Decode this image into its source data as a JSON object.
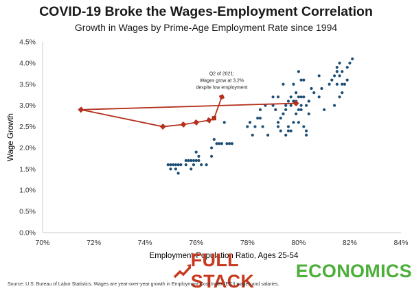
{
  "title": "COVID-19 Broke the Wages-Employment Correlation",
  "subtitle": "Growth in Wages by Prime-Age Employment Rate since 1994",
  "source": "Source: U.S. Bureau of Labor Statistics. Wages are year-over-year growth in Employment Cost Index (ECI) wages and salaries.",
  "logo": {
    "part1": "FULL STACK",
    "part2": "ECONOMICS",
    "icon": "trend-arrow-icon"
  },
  "colors": {
    "dots": "#1d4f76",
    "path": "#b5301d",
    "logo_red": "#c73a1f",
    "logo_green": "#4caf3a"
  },
  "chart_data": {
    "type": "scatter",
    "xlabel": "Employment-Population Ratio, Ages 25-54",
    "ylabel": "Wage Growth",
    "xlim": [
      70,
      84
    ],
    "ylim": [
      0,
      4.5
    ],
    "x_ticks": [
      {
        "value": 70,
        "label": "70%"
      },
      {
        "value": 72,
        "label": "72%"
      },
      {
        "value": 74,
        "label": "74%"
      },
      {
        "value": 76,
        "label": "76%"
      },
      {
        "value": 78,
        "label": "78%"
      },
      {
        "value": 80,
        "label": "80%"
      },
      {
        "value": 82,
        "label": "82%"
      },
      {
        "value": 84,
        "label": "84%"
      }
    ],
    "y_ticks": [
      {
        "value": 0,
        "label": "0.0%"
      },
      {
        "value": 0.5,
        "label": "0.5%"
      },
      {
        "value": 1,
        "label": "1.0%"
      },
      {
        "value": 1.5,
        "label": "1.5%"
      },
      {
        "value": 2,
        "label": "2.0%"
      },
      {
        "value": 2.5,
        "label": "2.5%"
      },
      {
        "value": 3,
        "label": "3.0%"
      },
      {
        "value": 3.5,
        "label": "3.5%"
      },
      {
        "value": 4,
        "label": "4.0%"
      },
      {
        "value": 4.5,
        "label": "4.5%"
      }
    ],
    "grid": false,
    "annotation": {
      "lines": [
        "Q2 of 2021:",
        "Wages grow at 3.2%",
        "despite low employment"
      ],
      "x": 77.0,
      "y": 3.2
    },
    "series": [
      {
        "type": "scatter",
        "points": [
          [
            74.9,
            1.6
          ],
          [
            75.0,
            1.6
          ],
          [
            75.1,
            1.6
          ],
          [
            75.2,
            1.6
          ],
          [
            75.3,
            1.6
          ],
          [
            75.4,
            1.6
          ],
          [
            75.0,
            1.5
          ],
          [
            75.2,
            1.5
          ],
          [
            75.3,
            1.4
          ],
          [
            75.6,
            1.6
          ],
          [
            75.6,
            1.7
          ],
          [
            75.7,
            1.7
          ],
          [
            75.8,
            1.7
          ],
          [
            75.9,
            1.7
          ],
          [
            76.0,
            1.7
          ],
          [
            76.1,
            1.7
          ],
          [
            76.1,
            1.8
          ],
          [
            76.0,
            1.9
          ],
          [
            75.8,
            1.5
          ],
          [
            75.9,
            1.6
          ],
          [
            76.2,
            1.6
          ],
          [
            76.4,
            1.6
          ],
          [
            76.6,
            1.8
          ],
          [
            76.6,
            2.0
          ],
          [
            76.7,
            2.2
          ],
          [
            76.8,
            2.1
          ],
          [
            76.9,
            2.1
          ],
          [
            77.0,
            2.1
          ],
          [
            77.1,
            2.6
          ],
          [
            77.3,
            2.1
          ],
          [
            77.4,
            2.1
          ],
          [
            77.2,
            2.1
          ],
          [
            78.0,
            2.5
          ],
          [
            78.1,
            2.6
          ],
          [
            78.2,
            2.3
          ],
          [
            78.3,
            2.5
          ],
          [
            78.4,
            2.7
          ],
          [
            78.5,
            2.7
          ],
          [
            78.6,
            2.5
          ],
          [
            78.8,
            2.3
          ],
          [
            78.5,
            2.9
          ],
          [
            78.7,
            3.0
          ],
          [
            79.0,
            3.0
          ],
          [
            79.1,
            2.9
          ],
          [
            79.2,
            2.6
          ],
          [
            79.3,
            2.7
          ],
          [
            79.4,
            2.8
          ],
          [
            79.5,
            2.9
          ],
          [
            79.6,
            2.5
          ],
          [
            79.2,
            2.5
          ],
          [
            79.3,
            2.4
          ],
          [
            79.6,
            2.4
          ],
          [
            79.7,
            2.4
          ],
          [
            79.5,
            2.3
          ],
          [
            79.8,
            2.6
          ],
          [
            79.9,
            2.8
          ],
          [
            80.0,
            2.9
          ],
          [
            80.1,
            2.9
          ],
          [
            80.0,
            2.6
          ],
          [
            80.2,
            2.5
          ],
          [
            80.3,
            2.4
          ],
          [
            80.3,
            2.3
          ],
          [
            79.5,
            3.0
          ],
          [
            79.6,
            3.1
          ],
          [
            79.7,
            3.2
          ],
          [
            79.8,
            3.1
          ],
          [
            79.9,
            3.3
          ],
          [
            80.0,
            3.2
          ],
          [
            80.1,
            3.2
          ],
          [
            80.2,
            3.2
          ],
          [
            80.1,
            3.0
          ],
          [
            80.3,
            3.0
          ],
          [
            79.9,
            3.1
          ],
          [
            79.7,
            3.0
          ],
          [
            80.4,
            3.1
          ],
          [
            80.4,
            2.8
          ],
          [
            80.5,
            3.4
          ],
          [
            80.6,
            3.3
          ],
          [
            80.8,
            3.2
          ],
          [
            80.8,
            3.7
          ],
          [
            80.9,
            3.4
          ],
          [
            80.2,
            3.6
          ],
          [
            80.0,
            3.8
          ],
          [
            79.8,
            3.5
          ],
          [
            80.1,
            3.6
          ],
          [
            79.2,
            3.2
          ],
          [
            79.4,
            3.5
          ],
          [
            79.0,
            3.2
          ],
          [
            81.0,
            2.9
          ],
          [
            81.2,
            3.5
          ],
          [
            81.3,
            3.6
          ],
          [
            81.5,
            3.9
          ],
          [
            81.6,
            3.7
          ],
          [
            81.7,
            3.8
          ],
          [
            81.7,
            3.3
          ],
          [
            81.5,
            3.5
          ],
          [
            81.5,
            3.8
          ],
          [
            81.8,
            3.5
          ],
          [
            81.9,
            3.9
          ],
          [
            82.0,
            4.0
          ],
          [
            82.1,
            4.1
          ],
          [
            81.4,
            3.7
          ],
          [
            81.7,
            3.5
          ],
          [
            81.6,
            4.0
          ],
          [
            81.9,
            3.6
          ],
          [
            81.6,
            3.2
          ],
          [
            81.4,
            3.0
          ]
        ]
      },
      {
        "type": "path",
        "points": [
          [
            79.9,
            3.05
          ],
          [
            71.5,
            2.9
          ],
          [
            74.7,
            2.5
          ],
          [
            75.5,
            2.55
          ],
          [
            76.0,
            2.6
          ],
          [
            76.5,
            2.65
          ],
          [
            76.7,
            2.7
          ],
          [
            77.0,
            3.2
          ]
        ]
      }
    ]
  }
}
